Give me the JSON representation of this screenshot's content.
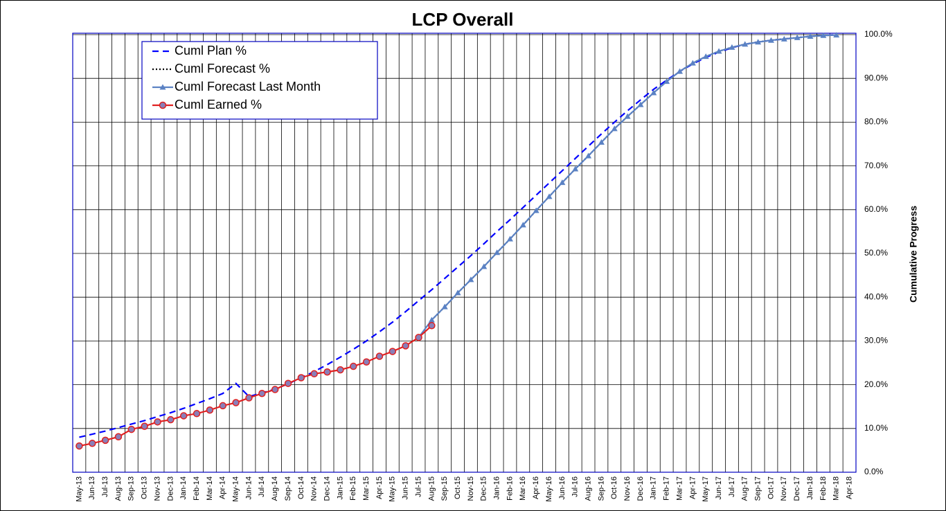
{
  "chart_data": {
    "type": "line",
    "title": "LCP Overall",
    "y_axis_label": "Cumulative Progress",
    "categories": [
      "May-13",
      "Jun-13",
      "Jul-13",
      "Aug-13",
      "Sep-13",
      "Oct-13",
      "Nov-13",
      "Dec-13",
      "Jan-14",
      "Feb-14",
      "Mar-14",
      "Apr-14",
      "May-14",
      "Jun-14",
      "Jul-14",
      "Aug-14",
      "Sep-14",
      "Oct-14",
      "Nov-14",
      "Dec-14",
      "Jan-15",
      "Feb-15",
      "Mar-15",
      "Apr-15",
      "May-15",
      "Jun-15",
      "Jul-15",
      "Aug-15",
      "Sep-15",
      "Oct-15",
      "Nov-15",
      "Dec-15",
      "Jan-16",
      "Feb-16",
      "Mar-16",
      "Apr-16",
      "May-16",
      "Jun-16",
      "Jul-16",
      "Aug-16",
      "Sep-16",
      "Oct-16",
      "Nov-16",
      "Dec-16",
      "Jan-17",
      "Feb-17",
      "Mar-17",
      "Apr-17",
      "May-17",
      "Jun-17",
      "Jul-17",
      "Aug-17",
      "Sep-17",
      "Oct-17",
      "Nov-17",
      "Dec-17",
      "Jan-18",
      "Feb-18",
      "Mar-18",
      "Apr-18"
    ],
    "ylim": [
      0,
      100
    ],
    "yticks": [
      {
        "value": 0,
        "label": "0.0%"
      },
      {
        "value": 10,
        "label": "10.0%"
      },
      {
        "value": 20,
        "label": "20.0%"
      },
      {
        "value": 30,
        "label": "30.0%"
      },
      {
        "value": 40,
        "label": "40.0%"
      },
      {
        "value": 50,
        "label": "50.0%"
      },
      {
        "value": 60,
        "label": "60.0%"
      },
      {
        "value": 70,
        "label": "70.0%"
      },
      {
        "value": 80,
        "label": "80.0%"
      },
      {
        "value": 90,
        "label": "90.0%"
      },
      {
        "value": 100,
        "label": "100.0%"
      }
    ],
    "y_axis_side": "right",
    "grid": true,
    "legend": "upper left",
    "series": [
      {
        "name": "Cuml Plan %",
        "color": "#0000ff",
        "style": "dashed",
        "marker": "none",
        "values": [
          8.0,
          8.7,
          9.4,
          10.2,
          11.0,
          11.8,
          12.7,
          13.6,
          14.6,
          15.7,
          16.8,
          18.0,
          20.3,
          17.3,
          18.1,
          19.0,
          20.2,
          21.6,
          23.0,
          24.6,
          26.3,
          28.1,
          30.0,
          32.1,
          34.3,
          36.7,
          39.2,
          41.7,
          44.3,
          46.9,
          49.5,
          52.2,
          55.0,
          57.7,
          60.5,
          63.3,
          66.1,
          68.9,
          71.7,
          74.5,
          77.3,
          80.0,
          82.6,
          85.1,
          87.5,
          89.6,
          91.6,
          93.3,
          94.8,
          96.0,
          97.0,
          97.8,
          98.3,
          98.7,
          99.0,
          99.3,
          99.6,
          99.8,
          100,
          null
        ]
      },
      {
        "name": "Cuml Forecast %",
        "color": "#000000",
        "style": "dotted",
        "marker": "none",
        "values": [
          null,
          null,
          null,
          null,
          null,
          null,
          null,
          null,
          null,
          null,
          null,
          null,
          null,
          null,
          null,
          null,
          null,
          null,
          null,
          null,
          null,
          null,
          null,
          null,
          null,
          null,
          null,
          34.8,
          37.8,
          41.0,
          44.0,
          47.0,
          50.2,
          53.3,
          56.5,
          59.8,
          63.0,
          66.2,
          69.3,
          72.3,
          75.4,
          78.5,
          81.3,
          84.0,
          86.7,
          89.3,
          91.6,
          93.5,
          95.0,
          96.2,
          97.1,
          97.8,
          98.3,
          98.7,
          99.0,
          99.3,
          99.6,
          99.8,
          99.9,
          null
        ]
      },
      {
        "name": "Cuml Forecast Last Month",
        "color": "#5b82c4",
        "style": "solid",
        "marker": "triangle",
        "values": [
          null,
          null,
          null,
          null,
          null,
          null,
          null,
          null,
          null,
          null,
          null,
          null,
          null,
          null,
          null,
          null,
          null,
          null,
          null,
          null,
          null,
          null,
          null,
          null,
          null,
          null,
          30.8,
          34.8,
          37.8,
          41.0,
          44.0,
          47.0,
          50.2,
          53.3,
          56.5,
          59.8,
          63.0,
          66.2,
          69.3,
          72.3,
          75.4,
          78.5,
          81.3,
          84.0,
          86.7,
          89.3,
          91.6,
          93.5,
          95.0,
          96.2,
          97.1,
          97.8,
          98.3,
          98.7,
          99.0,
          99.3,
          99.6,
          99.8,
          99.9,
          null
        ]
      },
      {
        "name": "Cuml Earned %",
        "color": "#e02020",
        "style": "solid",
        "marker": "circle",
        "values": [
          6.0,
          6.6,
          7.3,
          8.1,
          9.8,
          10.5,
          11.5,
          12.0,
          12.9,
          13.4,
          14.2,
          15.2,
          15.9,
          17.0,
          18.0,
          18.9,
          20.3,
          21.6,
          22.5,
          22.9,
          23.4,
          24.2,
          25.2,
          26.5,
          27.6,
          28.9,
          30.8,
          33.5,
          null,
          null,
          null,
          null,
          null,
          null,
          null,
          null,
          null,
          null,
          null,
          null,
          null,
          null,
          null,
          null,
          null,
          null,
          null,
          null,
          null,
          null,
          null,
          null,
          null,
          null,
          null,
          null,
          null,
          null,
          null,
          null
        ]
      }
    ]
  }
}
